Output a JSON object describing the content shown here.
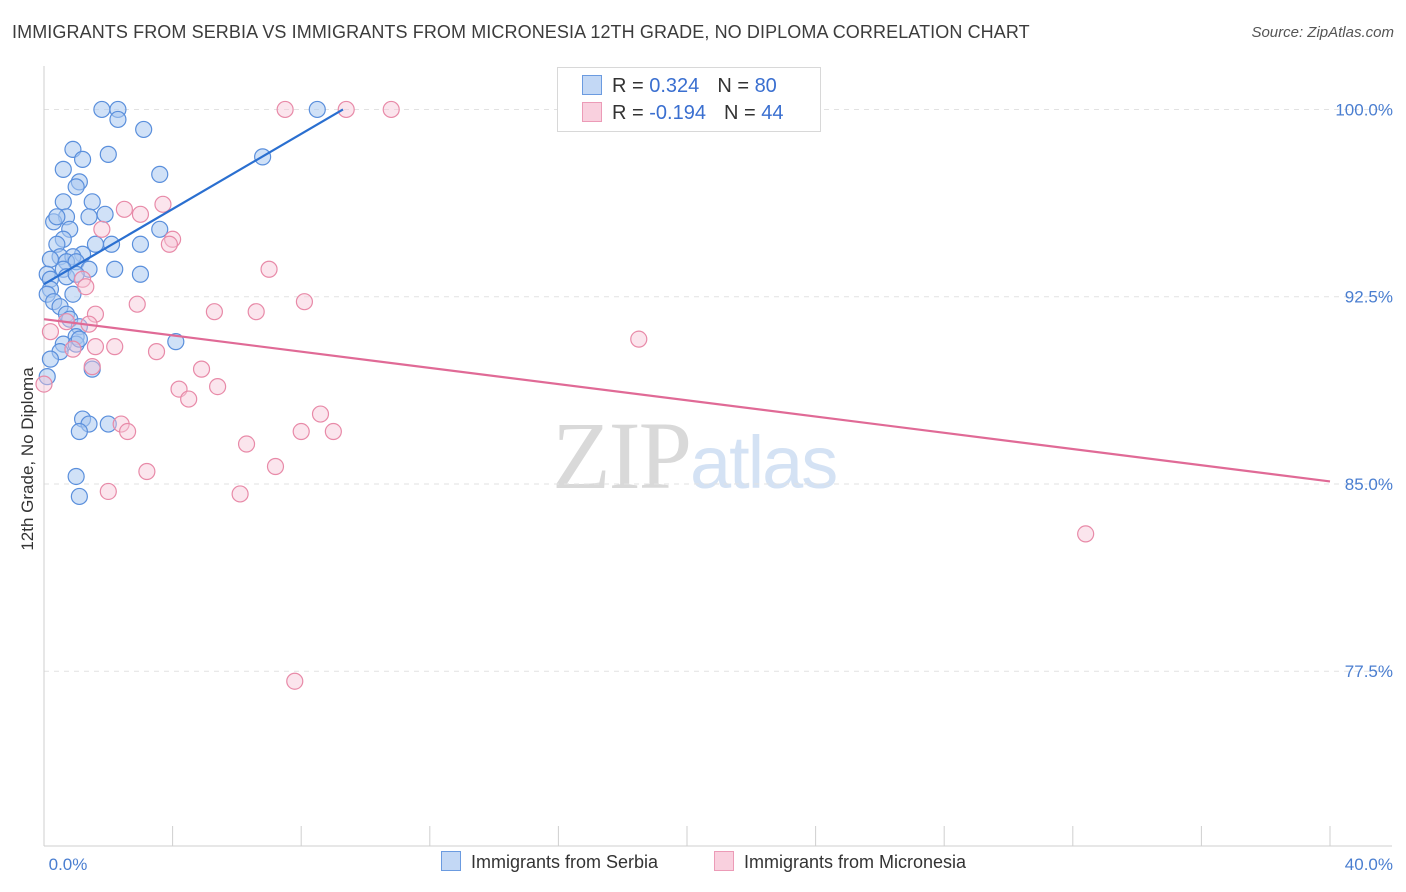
{
  "title": "IMMIGRANTS FROM SERBIA VS IMMIGRANTS FROM MICRONESIA 12TH GRADE, NO DIPLOMA CORRELATION CHART",
  "source": "Source: ZipAtlas.com",
  "watermark": {
    "zip": "ZIP",
    "atlas": "atlas"
  },
  "legend": {
    "serbia": {
      "r_label": "R = ",
      "r_value": "0.324",
      "n_label": "N = ",
      "n_value": "80"
    },
    "micronesia": {
      "r_label": "R = ",
      "r_value": "-0.194",
      "n_label": "N = ",
      "n_value": "44"
    }
  },
  "colors": {
    "serbia_fill": "#a9c8f0",
    "serbia_stroke": "#5a8fdc",
    "serbia_line": "#2a6fd0",
    "micronesia_fill": "#f7c6d6",
    "micronesia_stroke": "#e88aa8",
    "micronesia_line": "#e06a96",
    "tick_text": "#4a7ed0",
    "grid": "#e2e2e2"
  },
  "chart_data": {
    "type": "scatter",
    "title": "IMMIGRANTS FROM SERBIA VS IMMIGRANTS FROM MICRONESIA 12TH GRADE, NO DIPLOMA CORRELATION CHART",
    "xlabel": "",
    "ylabel": "12th Grade, No Diploma",
    "xlim": [
      0,
      40
    ],
    "ylim": [
      70.5,
      101.5
    ],
    "x_tick_labels": [
      "0.0%",
      "40.0%"
    ],
    "y_ticks": [
      77.5,
      85.0,
      92.5,
      100.0
    ],
    "y_tick_labels": [
      "77.5%",
      "85.0%",
      "92.5%",
      "100.0%"
    ],
    "grid": true,
    "series": [
      {
        "name": "Immigrants from Serbia",
        "trend": [
          [
            0.0,
            93.0
          ],
          [
            9.3,
            100.0
          ]
        ],
        "points": [
          [
            1.8,
            100.0
          ],
          [
            2.3,
            100.0
          ],
          [
            2.3,
            99.6
          ],
          [
            3.1,
            99.2
          ],
          [
            8.5,
            100.0
          ],
          [
            0.9,
            98.4
          ],
          [
            1.2,
            98.0
          ],
          [
            2.0,
            98.2
          ],
          [
            0.6,
            97.6
          ],
          [
            1.1,
            97.1
          ],
          [
            3.6,
            97.4
          ],
          [
            6.8,
            98.1
          ],
          [
            1.0,
            96.9
          ],
          [
            0.6,
            96.3
          ],
          [
            1.5,
            96.3
          ],
          [
            0.7,
            95.7
          ],
          [
            1.4,
            95.7
          ],
          [
            1.9,
            95.8
          ],
          [
            0.3,
            95.5
          ],
          [
            0.4,
            95.7
          ],
          [
            0.8,
            95.2
          ],
          [
            3.6,
            95.2
          ],
          [
            0.6,
            94.8
          ],
          [
            0.4,
            94.6
          ],
          [
            1.6,
            94.6
          ],
          [
            2.1,
            94.6
          ],
          [
            3.0,
            94.6
          ],
          [
            1.2,
            94.2
          ],
          [
            0.5,
            94.1
          ],
          [
            0.9,
            94.1
          ],
          [
            0.2,
            94.0
          ],
          [
            0.7,
            93.9
          ],
          [
            1.0,
            93.9
          ],
          [
            0.6,
            93.6
          ],
          [
            1.4,
            93.6
          ],
          [
            2.2,
            93.6
          ],
          [
            3.0,
            93.4
          ],
          [
            0.1,
            93.4
          ],
          [
            0.2,
            93.2
          ],
          [
            0.7,
            93.3
          ],
          [
            1.0,
            93.4
          ],
          [
            0.2,
            92.8
          ],
          [
            0.1,
            92.6
          ],
          [
            0.3,
            92.3
          ],
          [
            0.9,
            92.6
          ],
          [
            0.5,
            92.1
          ],
          [
            0.7,
            91.8
          ],
          [
            0.8,
            91.6
          ],
          [
            1.1,
            91.3
          ],
          [
            1.0,
            90.9
          ],
          [
            0.6,
            90.6
          ],
          [
            1.0,
            90.6
          ],
          [
            1.1,
            90.8
          ],
          [
            4.1,
            90.7
          ],
          [
            0.5,
            90.3
          ],
          [
            0.2,
            90.0
          ],
          [
            1.5,
            89.6
          ],
          [
            0.1,
            89.3
          ],
          [
            1.2,
            87.6
          ],
          [
            2.0,
            87.4
          ],
          [
            1.4,
            87.4
          ],
          [
            1.1,
            87.1
          ],
          [
            1.0,
            85.3
          ],
          [
            1.1,
            84.5
          ]
        ]
      },
      {
        "name": "Immigrants from Micronesia",
        "trend": [
          [
            0.0,
            91.6
          ],
          [
            40.0,
            85.1
          ]
        ],
        "points": [
          [
            7.5,
            100.0
          ],
          [
            9.4,
            100.0
          ],
          [
            10.8,
            100.0
          ],
          [
            2.5,
            96.0
          ],
          [
            3.0,
            95.8
          ],
          [
            3.7,
            96.2
          ],
          [
            1.8,
            95.2
          ],
          [
            4.0,
            94.8
          ],
          [
            3.9,
            94.6
          ],
          [
            7.0,
            93.6
          ],
          [
            1.2,
            93.2
          ],
          [
            1.3,
            92.9
          ],
          [
            2.9,
            92.2
          ],
          [
            8.1,
            92.3
          ],
          [
            1.6,
            91.8
          ],
          [
            5.3,
            91.9
          ],
          [
            6.6,
            91.9
          ],
          [
            0.2,
            91.1
          ],
          [
            0.7,
            91.5
          ],
          [
            1.4,
            91.4
          ],
          [
            1.6,
            90.5
          ],
          [
            2.2,
            90.5
          ],
          [
            3.5,
            90.3
          ],
          [
            0.9,
            90.4
          ],
          [
            18.5,
            90.8
          ],
          [
            1.5,
            89.7
          ],
          [
            4.9,
            89.6
          ],
          [
            4.2,
            88.8
          ],
          [
            5.4,
            88.9
          ],
          [
            4.5,
            88.4
          ],
          [
            0.0,
            89.0
          ],
          [
            8.6,
            87.8
          ],
          [
            2.4,
            87.4
          ],
          [
            2.6,
            87.1
          ],
          [
            8.0,
            87.1
          ],
          [
            9.0,
            87.1
          ],
          [
            6.3,
            86.6
          ],
          [
            7.2,
            85.7
          ],
          [
            3.2,
            85.5
          ],
          [
            2.0,
            84.7
          ],
          [
            6.1,
            84.6
          ],
          [
            32.4,
            83.0
          ],
          [
            7.8,
            77.1
          ]
        ]
      }
    ]
  },
  "bottom_legend": {
    "serbia": "Immigrants from Serbia",
    "micronesia": "Immigrants from Micronesia"
  }
}
